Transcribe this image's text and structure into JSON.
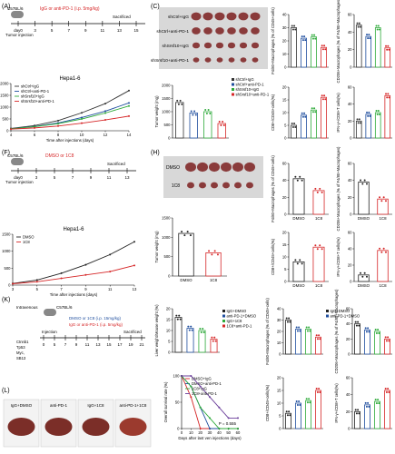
{
  "panels": {
    "A": {
      "label": "(A)",
      "strain": "C57BL/6",
      "treatment": "IgG or anti-PD-1 (i.p. 5mg/kg)",
      "ticks": [
        "day0",
        "3",
        "5",
        "7",
        "9",
        "11",
        "13",
        "15"
      ],
      "sacrificed": "Sacrificed",
      "tumor_injection": "Tumor injection"
    },
    "C": {
      "label": "(C)",
      "rows": [
        "shCtrl+IgG",
        "shCtrl+anti-PD-1",
        "shSrsf10+IgG",
        "shSrsf10+anti-PD-1"
      ]
    },
    "F": {
      "label": "(F)",
      "strain": "C57BL/6",
      "treatment": "DMSO or 1C8",
      "ticks": [
        "day0",
        "3",
        "5",
        "7",
        "9",
        "11",
        "13"
      ],
      "sacrificed": "Sacrificed",
      "tumor_injection": "Tumor injection"
    },
    "H": {
      "label": "(H)",
      "rows": [
        "DMSO",
        "1C8"
      ]
    },
    "K": {
      "label": "(K)",
      "strain": "C57BL/6",
      "route": "Intravenous",
      "treatment1": "DMSO or 1C8 (i.p. 15mg/kg)",
      "treatment2": "IgG or anti-PD-1 (i.p. 5mg/kg)",
      "injection": "Injection",
      "sacrificed": "Sacrificed",
      "genes": [
        "Ctnnb1",
        "Tp53",
        "Myc,",
        "SB13"
      ],
      "ticks": [
        "0",
        "5",
        "7",
        "9",
        "11",
        "13",
        "15",
        "17",
        "19",
        "21"
      ]
    },
    "L": {
      "label": "(L)",
      "labels": [
        "IgG+DMSO",
        "anti-PD-1",
        "IgG+1C8",
        "anti-PD-1+1C8"
      ]
    }
  },
  "chart_data": [
    {
      "id": "B",
      "type": "line",
      "title": "Hepa1-6",
      "xlabel": "Time after injections (days)",
      "ylabel": "Tumor volume (mm³)",
      "x": [
        4,
        6,
        8,
        10,
        12,
        14
      ],
      "ylim": [
        0,
        2000
      ],
      "yticks": [
        0,
        500,
        1000,
        1500,
        2000
      ],
      "xticks": [
        4,
        6,
        8,
        10,
        12,
        14
      ],
      "series": [
        {
          "name": "shCtrl+IgG",
          "color": "#333333",
          "values": [
            100,
            220,
            430,
            760,
            1150,
            1700
          ]
        },
        {
          "name": "shCtrl+anti-PD-1",
          "color": "#1f4e9e",
          "values": [
            90,
            180,
            330,
            560,
            830,
            1180
          ]
        },
        {
          "name": "shSrsf10+IgG",
          "color": "#2eaa3a",
          "values": [
            85,
            170,
            300,
            500,
            750,
            1050
          ]
        },
        {
          "name": "shSrsf10+anti-PD-1",
          "color": "#d62728",
          "values": [
            70,
            120,
            200,
            320,
            460,
            620
          ]
        }
      ]
    },
    {
      "id": "D",
      "type": "bar",
      "xlabel": "",
      "ylabel": "Tumor weight (mg)",
      "ylim": [
        0,
        2000
      ],
      "yticks": [
        0,
        500,
        1000,
        1500,
        2000
      ],
      "series": [
        {
          "name": "shCtrl+IgG",
          "color": "#333333",
          "values": [
            1350
          ]
        },
        {
          "name": "shCtrl+anti-PD-1",
          "color": "#1f4e9e",
          "values": [
            950
          ]
        },
        {
          "name": "shSrsf10+IgG",
          "color": "#2eaa3a",
          "values": [
            1000
          ]
        },
        {
          "name": "shSrsf10+anti-PD-1",
          "color": "#d62728",
          "values": [
            550
          ]
        }
      ]
    },
    {
      "id": "E1",
      "type": "bar",
      "ylabel": "F4/80+Macrophages (% of CD45+cells)",
      "ylim": [
        0,
        40
      ],
      "yticks": [
        0,
        10,
        20,
        30,
        40
      ],
      "values": [
        30,
        22,
        23,
        15
      ],
      "colors": [
        "#333333",
        "#1f4e9e",
        "#2eaa3a",
        "#d62728"
      ]
    },
    {
      "id": "E2",
      "type": "bar",
      "ylabel": "CD206+Macrophages (% of F4/80+Macrophages)",
      "ylim": [
        0,
        60
      ],
      "yticks": [
        0,
        20,
        40,
        60
      ],
      "values": [
        48,
        35,
        45,
        22
      ],
      "colors": [
        "#333333",
        "#1f4e9e",
        "#2eaa3a",
        "#d62728"
      ]
    },
    {
      "id": "E3",
      "type": "bar",
      "ylabel": "CD8+/CD45+cells(%)",
      "ylim": [
        0,
        20
      ],
      "yticks": [
        0,
        5,
        10,
        15,
        20
      ],
      "values": [
        5,
        9,
        11,
        16
      ],
      "colors": [
        "#333333",
        "#1f4e9e",
        "#2eaa3a",
        "#d62728"
      ]
    },
    {
      "id": "E4",
      "type": "bar",
      "ylabel": "IFN-γ+/CD8+T cells(%)",
      "ylim": [
        0,
        60
      ],
      "yticks": [
        0,
        20,
        40,
        60
      ],
      "values": [
        20,
        28,
        30,
        50
      ],
      "colors": [
        "#333333",
        "#1f4e9e",
        "#2eaa3a",
        "#d62728"
      ]
    },
    {
      "id": "G",
      "type": "line",
      "title": "Hepa1-6",
      "xlabel": "Time after injections (days)",
      "ylabel": "Tumor volume (mm³)",
      "x": [
        3,
        5,
        7,
        9,
        11,
        13
      ],
      "ylim": [
        0,
        1500
      ],
      "yticks": [
        0,
        500,
        1000,
        1500
      ],
      "xticks": [
        3,
        5,
        7,
        9,
        11,
        13
      ],
      "series": [
        {
          "name": "DMSO",
          "color": "#222222",
          "values": [
            50,
            150,
            350,
            600,
            900,
            1280
          ]
        },
        {
          "name": "1C8",
          "color": "#d62728",
          "values": [
            40,
            100,
            200,
            300,
            400,
            580
          ]
        }
      ]
    },
    {
      "id": "I",
      "type": "bar",
      "ylabel": "Tumor weight (mg)",
      "categories": [
        "DMSO",
        "1C8"
      ],
      "ylim": [
        0,
        1500
      ],
      "yticks": [
        0,
        500,
        1000,
        1500
      ],
      "values": [
        1100,
        600
      ],
      "colors": [
        "#222222",
        "#d62728"
      ]
    },
    {
      "id": "J1",
      "type": "bar",
      "ylabel": "F4/80+Macrophages (% of CD45+cells)",
      "categories": [
        "DMSO",
        "1C8"
      ],
      "ylim": [
        0,
        60
      ],
      "yticks": [
        0,
        20,
        40,
        60
      ],
      "values": [
        42,
        28
      ],
      "colors": [
        "#222222",
        "#d62728"
      ]
    },
    {
      "id": "J2",
      "type": "bar",
      "ylabel": "CD206+Macrophages (% of F4/80+Macrophages)",
      "categories": [
        "DMSO",
        "1C8"
      ],
      "ylim": [
        0,
        60
      ],
      "yticks": [
        0,
        20,
        40,
        60
      ],
      "values": [
        38,
        18
      ],
      "colors": [
        "#222222",
        "#d62728"
      ]
    },
    {
      "id": "J3",
      "type": "bar",
      "ylabel": "CD8+/CD45+cells(%)",
      "categories": [
        "DMSO",
        "1C8"
      ],
      "ylim": [
        0,
        20
      ],
      "yticks": [
        0,
        5,
        10,
        15,
        20
      ],
      "values": [
        8,
        14
      ],
      "colors": [
        "#222222",
        "#d62728"
      ]
    },
    {
      "id": "J4",
      "type": "bar",
      "ylabel": "IFN-γ+/CD8+T cells(%)",
      "categories": [
        "DMSO",
        "1C8"
      ],
      "ylim": [
        0,
        60
      ],
      "yticks": [
        0,
        20,
        40,
        60
      ],
      "values": [
        8,
        38
      ],
      "colors": [
        "#222222",
        "#d62728"
      ]
    },
    {
      "id": "M",
      "type": "bar",
      "ylabel": "Liver weight/Mouse weight (%)",
      "ylim": [
        0,
        20
      ],
      "yticks": [
        0,
        5,
        10,
        15,
        20
      ],
      "values": [
        16,
        11,
        10,
        6
      ],
      "colors": [
        "#222222",
        "#1f4e9e",
        "#2eaa3a",
        "#d62728"
      ],
      "legend": [
        "IgG+DMSO",
        "anti-PD-1+DMSO",
        "IgG+1C8",
        "1C8+anti-PD-1"
      ]
    },
    {
      "id": "N",
      "type": "line",
      "xlabel": "Days after last ven injections (days)",
      "ylabel": "Overall survival rate (%)",
      "x": [
        0,
        10,
        20,
        30,
        40,
        50,
        60
      ],
      "ylim": [
        0,
        100
      ],
      "yticks": [
        0,
        50,
        100
      ],
      "xticks": [
        0,
        10,
        20,
        30,
        40,
        50,
        60
      ],
      "legend": [
        "DMSO+IgG",
        "DMSO+anti-PD-1",
        "1C8+IgG",
        "1C8+anti-PD-1"
      ],
      "annotation": "P = 0.555",
      "series": [
        {
          "name": "DMSO+IgG",
          "color": "#d62728",
          "values": [
            100,
            60,
            0,
            0,
            0,
            0,
            0
          ]
        },
        {
          "name": "DMSO+anti-PD-1",
          "color": "#1f4e9e",
          "values": [
            100,
            80,
            40,
            0,
            0,
            0,
            0
          ]
        },
        {
          "name": "1C8+IgG",
          "color": "#2eaa3a",
          "values": [
            100,
            80,
            40,
            20,
            0,
            0,
            0
          ]
        },
        {
          "name": "1C8+anti-PD-1",
          "color": "#6a3d9a",
          "values": [
            100,
            100,
            80,
            60,
            40,
            20,
            20
          ]
        }
      ]
    },
    {
      "id": "O1",
      "type": "bar",
      "ylabel": "F4/80+Macrophages (% of CD45+cells)",
      "ylim": [
        0,
        40
      ],
      "yticks": [
        0,
        10,
        20,
        30,
        40
      ],
      "values": [
        30,
        22,
        22,
        15
      ],
      "colors": [
        "#222222",
        "#1f4e9e",
        "#2eaa3a",
        "#d62728"
      ],
      "legend": [
        "IgG+DMSO",
        "anti-PD-1+DMSO"
      ]
    },
    {
      "id": "O2",
      "type": "bar",
      "ylabel": "CD206+Macrophages (% of F4/80+Macrophages)",
      "ylim": [
        0,
        60
      ],
      "yticks": [
        0,
        20,
        40,
        60
      ],
      "values": [
        40,
        32,
        30,
        20
      ],
      "colors": [
        "#222222",
        "#1f4e9e",
        "#2eaa3a",
        "#d62728"
      ],
      "legend": [
        "IgG+1C8",
        "1C8+anti-PD-1"
      ]
    },
    {
      "id": "O3",
      "type": "bar",
      "ylabel": "CD8+/CD45+cells(%)",
      "ylim": [
        0,
        20
      ],
      "yticks": [
        0,
        5,
        10,
        15,
        20
      ],
      "values": [
        6,
        10,
        11,
        15
      ],
      "colors": [
        "#222222",
        "#1f4e9e",
        "#2eaa3a",
        "#d62728"
      ]
    },
    {
      "id": "O4",
      "type": "bar",
      "ylabel": "IFN-γ+/CD8+T cells(%)",
      "ylim": [
        0,
        60
      ],
      "yticks": [
        0,
        20,
        40,
        60
      ],
      "values": [
        20,
        28,
        32,
        45
      ],
      "colors": [
        "#222222",
        "#1f4e9e",
        "#2eaa3a",
        "#d62728"
      ]
    }
  ]
}
